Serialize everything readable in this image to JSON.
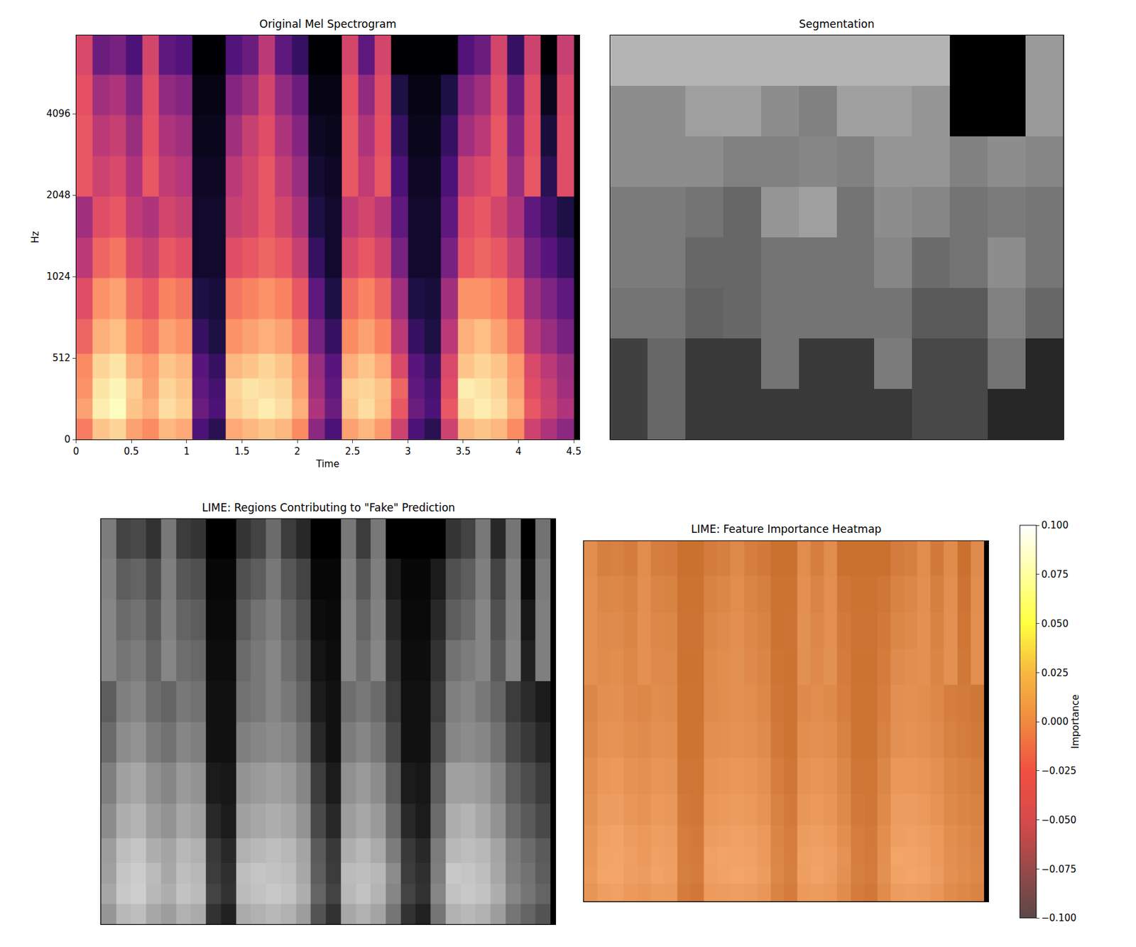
{
  "chart_data": [
    {
      "type": "heatmap",
      "title": "Original Mel Spectrogram",
      "x_label": "Time",
      "y_label": "Hz",
      "x": [
        0.075,
        0.225,
        0.375,
        0.525,
        0.675,
        0.825,
        0.975,
        1.125,
        1.275,
        1.425,
        1.575,
        1.725,
        1.875,
        2.025,
        2.175,
        2.325,
        2.475,
        2.625,
        2.775,
        2.925,
        3.075,
        3.225,
        3.375,
        3.525,
        3.675,
        3.825,
        3.975,
        4.125,
        4.275,
        4.425
      ],
      "y": [
        64,
        192,
        320,
        448,
        600,
        850,
        1200,
        1700,
        2400,
        3400,
        4800,
        6800
      ],
      "values": [
        [
          -25,
          -15,
          -13,
          -20,
          -23,
          -17,
          -19,
          -55,
          -60,
          -19,
          -17,
          -15,
          -17,
          -23,
          -45,
          -55,
          -20,
          -17,
          -21,
          -35,
          -55,
          -60,
          -35,
          -17,
          -15,
          -17,
          -23,
          -35,
          -40,
          -45
        ],
        [
          -20,
          -10,
          -8,
          -15,
          -18,
          -12,
          -14,
          -50,
          -55,
          -14,
          -12,
          -10,
          -12,
          -18,
          -40,
          -50,
          -15,
          -12,
          -16,
          -30,
          -50,
          -55,
          -30,
          -12,
          -10,
          -12,
          -18,
          -30,
          -35,
          -40
        ],
        [
          -22,
          -11,
          -9,
          -14,
          -20,
          -13,
          -15,
          -52,
          -56,
          -13,
          -11,
          -12,
          -13,
          -20,
          -42,
          -52,
          -14,
          -13,
          -15,
          -28,
          -52,
          -56,
          -32,
          -10,
          -11,
          -13,
          -20,
          -32,
          -36,
          -42
        ],
        [
          -23,
          -13,
          -11,
          -18,
          -21,
          -15,
          -17,
          -53,
          -58,
          -17,
          -15,
          -13,
          -15,
          -21,
          -43,
          -53,
          -18,
          -15,
          -19,
          -33,
          -53,
          -58,
          -33,
          -15,
          -13,
          -15,
          -21,
          -33,
          -38,
          -43
        ],
        [
          -28,
          -18,
          -16,
          -23,
          -26,
          -20,
          -22,
          -58,
          -62,
          -22,
          -20,
          -18,
          -20,
          -26,
          -48,
          -58,
          -23,
          -20,
          -24,
          -38,
          -58,
          -62,
          -38,
          -18,
          -16,
          -20,
          -26,
          -38,
          -43,
          -48
        ],
        [
          -32,
          -22,
          -20,
          -27,
          -30,
          -24,
          -26,
          -62,
          -63,
          -26,
          -24,
          -22,
          -24,
          -30,
          -52,
          -62,
          -27,
          -24,
          -28,
          -42,
          -62,
          -63,
          -42,
          -22,
          -22,
          -24,
          -30,
          -42,
          -47,
          -52
        ],
        [
          -38,
          -28,
          -26,
          -33,
          -36,
          -30,
          -32,
          -65,
          -65,
          -32,
          -30,
          -28,
          -30,
          -36,
          -58,
          -65,
          -33,
          -30,
          -34,
          -48,
          -65,
          -65,
          -48,
          -30,
          -28,
          -30,
          -36,
          -48,
          -53,
          -58
        ],
        [
          -42,
          -32,
          -30,
          -37,
          -40,
          -34,
          -36,
          -65,
          -65,
          -36,
          -34,
          -30,
          -34,
          -40,
          -62,
          -65,
          -37,
          -34,
          -38,
          -52,
          -65,
          -65,
          -52,
          -32,
          -30,
          -34,
          -40,
          -52,
          -57,
          -62
        ],
        [
          -30,
          -35,
          -33,
          -40,
          -30,
          -37,
          -39,
          -66,
          -66,
          -38,
          -34,
          -30,
          -37,
          -43,
          -64,
          -66,
          -30,
          -37,
          -30,
          -55,
          -66,
          -66,
          -55,
          -36,
          -33,
          -30,
          -43,
          -30,
          -60,
          -32
        ],
        [
          -30,
          -38,
          -36,
          -43,
          -31,
          -40,
          -42,
          -67,
          -67,
          -42,
          -36,
          -32,
          -40,
          -46,
          -66,
          -67,
          -30,
          -40,
          -31,
          -58,
          -67,
          -67,
          -58,
          -42,
          -38,
          -30,
          -46,
          -31,
          -63,
          -32
        ],
        [
          -31,
          -42,
          -40,
          -47,
          -32,
          -44,
          -46,
          -68,
          -68,
          -46,
          -42,
          -34,
          -44,
          -50,
          -68,
          -68,
          -31,
          -44,
          -32,
          -62,
          -68,
          -68,
          -62,
          -46,
          -42,
          -32,
          -50,
          -32,
          -67,
          -33
        ],
        [
          -33,
          -50,
          -48,
          -55,
          -34,
          -52,
          -54,
          -70,
          -70,
          -54,
          -50,
          -38,
          -52,
          -58,
          -70,
          -70,
          -34,
          -52,
          -34,
          -70,
          -70,
          -70,
          -70,
          -54,
          -50,
          -34,
          -58,
          -35,
          -70,
          -36
        ]
      ],
      "xlim": [
        0,
        4.55
      ],
      "xticks": [
        0,
        0.5,
        1,
        1.5,
        2,
        2.5,
        3,
        3.5,
        4,
        4.5
      ],
      "ylim": [
        0,
        8000
      ],
      "yticks": [
        0,
        512,
        1024,
        2048,
        4096
      ]
    },
    {
      "type": "heatmap",
      "title": "Segmentation",
      "tick_labels": false,
      "values": [
        [
          70,
          70,
          70,
          70,
          70,
          70,
          70,
          70,
          70,
          0,
          0,
          60
        ],
        [
          55,
          55,
          62,
          62,
          55,
          50,
          62,
          62,
          58,
          0,
          0,
          60
        ],
        [
          55,
          55,
          55,
          50,
          50,
          52,
          50,
          58,
          58,
          50,
          55,
          52
        ],
        [
          48,
          48,
          45,
          40,
          58,
          62,
          45,
          55,
          52,
          45,
          48,
          46
        ],
        [
          48,
          48,
          40,
          40,
          45,
          45,
          45,
          52,
          42,
          45,
          55,
          46
        ],
        [
          45,
          45,
          38,
          40,
          45,
          45,
          45,
          45,
          35,
          35,
          50,
          40
        ],
        [
          25,
          40,
          22,
          22,
          45,
          22,
          22,
          48,
          28,
          28,
          45,
          15
        ],
        [
          25,
          40,
          22,
          22,
          22,
          22,
          22,
          22,
          28,
          28,
          15,
          15
        ]
      ]
    },
    {
      "type": "heatmap",
      "title": "LIME: Regions Contributing to \"Fake\" Prediction",
      "tick_labels": false
    },
    {
      "type": "heatmap",
      "title": "LIME: Feature Importance Heatmap",
      "tick_labels": false,
      "colorbar_title": "Importance",
      "zlim": [
        -0.1,
        0.1
      ],
      "zticks": [
        {
          "value": -0.1,
          "label": "−0.100"
        },
        {
          "value": -0.075,
          "label": "−0.075"
        },
        {
          "value": -0.05,
          "label": "−0.050"
        },
        {
          "value": -0.025,
          "label": "−0.025"
        },
        {
          "value": 0,
          "label": "0.000"
        },
        {
          "value": 0.025,
          "label": "0.025"
        },
        {
          "value": 0.05,
          "label": "0.050"
        },
        {
          "value": 0.075,
          "label": "0.075"
        },
        {
          "value": 0.1,
          "label": "0.100"
        }
      ],
      "values": [
        [
          0,
          0,
          0,
          0,
          0,
          0,
          0,
          0,
          0,
          0,
          0,
          0,
          0,
          0,
          0,
          0,
          0,
          0,
          0,
          0,
          0,
          0,
          0,
          0,
          0,
          0,
          0,
          0,
          0,
          0
        ],
        [
          0,
          0,
          0,
          0,
          0,
          0,
          0,
          0,
          0,
          0,
          0,
          0,
          0,
          0,
          0,
          0,
          0,
          0,
          0,
          0,
          0,
          0,
          0,
          0,
          0,
          0,
          0,
          0,
          0,
          0
        ],
        [
          0,
          0,
          0,
          0,
          0,
          0,
          0,
          0,
          0,
          0,
          0,
          0,
          0,
          0,
          0,
          0,
          0,
          0,
          0,
          0,
          0,
          0,
          0,
          0,
          0,
          0,
          0,
          0,
          0,
          0
        ],
        [
          0,
          0,
          0,
          0,
          0,
          0,
          0,
          0,
          0,
          0,
          0,
          0,
          0,
          0,
          0,
          0,
          0,
          0,
          0,
          0,
          0,
          0,
          0,
          0,
          0,
          0,
          0,
          0,
          0,
          0
        ],
        [
          0,
          0,
          0,
          0,
          0,
          0,
          0,
          0,
          0,
          0,
          0,
          0,
          0,
          0,
          0,
          0,
          0,
          0,
          0,
          0,
          0,
          0,
          0,
          0,
          0,
          0,
          0,
          0,
          0,
          0
        ],
        [
          0,
          0,
          0,
          0,
          0,
          0,
          0,
          0,
          0,
          0,
          0,
          0,
          0,
          0,
          0,
          0,
          0,
          0,
          0,
          0,
          0,
          0,
          0,
          0,
          0,
          0,
          0,
          0,
          0,
          0
        ],
        [
          0,
          0,
          0,
          0,
          0,
          0,
          0,
          0,
          0,
          0,
          0,
          0,
          0,
          0,
          0,
          0,
          0,
          0,
          0,
          0,
          0,
          0,
          0,
          0,
          0,
          0,
          0,
          0,
          0,
          0
        ],
        [
          0,
          0,
          0,
          0,
          0,
          0,
          0,
          0,
          0,
          0,
          0,
          0,
          0,
          0,
          0,
          0,
          0,
          0,
          0,
          0,
          0,
          0,
          0,
          0,
          0,
          0,
          0,
          0,
          0,
          0
        ],
        [
          0,
          0,
          0,
          0,
          0,
          0,
          0,
          0,
          0,
          0,
          0,
          0,
          0,
          0,
          0,
          0,
          0,
          0,
          0,
          0,
          0,
          0,
          0,
          0,
          0,
          0,
          0,
          0,
          0,
          0
        ],
        [
          0,
          0,
          0,
          0,
          0,
          0,
          0,
          0,
          0,
          0,
          0,
          0,
          0,
          0,
          0,
          0,
          0,
          0,
          0,
          0,
          0,
          0,
          0,
          0,
          0,
          0,
          0,
          0,
          0,
          0
        ],
        [
          0,
          0,
          0,
          0,
          0,
          0,
          0,
          0,
          0,
          0,
          0,
          0,
          0,
          0,
          0,
          0,
          0,
          0,
          0,
          0,
          0,
          0,
          0,
          0,
          0,
          0,
          0,
          0,
          0,
          0
        ],
        [
          0,
          0,
          0,
          0,
          0,
          0,
          0,
          0,
          0,
          0,
          0,
          0,
          0,
          0,
          0,
          0,
          0,
          0,
          0,
          0,
          0,
          0,
          0,
          0,
          0,
          0,
          0,
          0,
          0,
          0
        ]
      ]
    }
  ]
}
